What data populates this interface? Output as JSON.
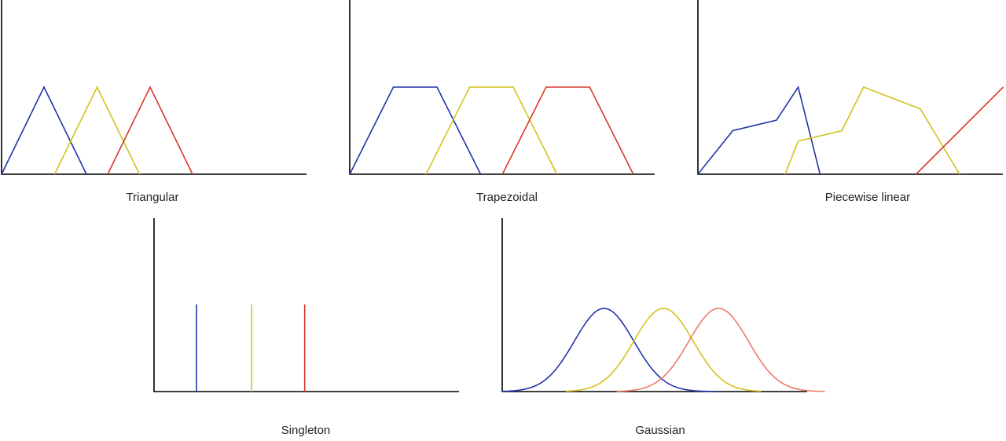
{
  "colors": {
    "blue": "#2233aa",
    "yellow": "#d4c21e",
    "red": "#d63a2a",
    "salmon": "#ec7a6b",
    "axis": "#000000"
  },
  "panels": [
    {
      "id": "triangular",
      "caption": "Triangular",
      "series": [
        {
          "color": "blue",
          "points": [
            [
              0,
              0
            ],
            [
              1,
              1
            ],
            [
              2,
              0
            ]
          ]
        },
        {
          "color": "yellow",
          "points": [
            [
              1.25,
              0
            ],
            [
              2.25,
              1
            ],
            [
              3.25,
              0
            ]
          ]
        },
        {
          "color": "red",
          "points": [
            [
              2.5,
              0
            ],
            [
              3.5,
              1
            ],
            [
              4.5,
              0
            ]
          ]
        }
      ]
    },
    {
      "id": "trapezoidal",
      "caption": "Trapezoidal",
      "series": [
        {
          "color": "blue",
          "points": [
            [
              0,
              0
            ],
            [
              1,
              1
            ],
            [
              2,
              1
            ],
            [
              3,
              0
            ]
          ]
        },
        {
          "color": "yellow",
          "points": [
            [
              1.75,
              0
            ],
            [
              2.75,
              1
            ],
            [
              3.75,
              1
            ],
            [
              4.75,
              0
            ]
          ]
        },
        {
          "color": "red",
          "points": [
            [
              3.5,
              0
            ],
            [
              4.5,
              1
            ],
            [
              5.5,
              1
            ],
            [
              6.5,
              0
            ]
          ]
        }
      ]
    },
    {
      "id": "piecewise-linear",
      "caption": "Piecewise linear",
      "series": [
        {
          "color": "blue",
          "points": [
            [
              0,
              0
            ],
            [
              0.8,
              0.5
            ],
            [
              1.8,
              0.62
            ],
            [
              2.3,
              1
            ],
            [
              2.8,
              0
            ]
          ]
        },
        {
          "color": "yellow",
          "points": [
            [
              2.0,
              0
            ],
            [
              2.3,
              0.38
            ],
            [
              3.3,
              0.5
            ],
            [
              3.8,
              1
            ],
            [
              5.1,
              0.75
            ],
            [
              6.0,
              0
            ]
          ]
        },
        {
          "color": "red",
          "points": [
            [
              5.0,
              0
            ],
            [
              7.0,
              1
            ]
          ]
        }
      ]
    },
    {
      "id": "singleton",
      "caption": "Singleton",
      "series": [
        {
          "color": "blue",
          "points": [
            [
              1,
              0
            ],
            [
              1,
              1
            ]
          ]
        },
        {
          "color": "yellow",
          "points": [
            [
              2.3,
              0
            ],
            [
              2.3,
              1
            ]
          ]
        },
        {
          "color": "red",
          "points": [
            [
              3.55,
              0
            ],
            [
              3.55,
              1
            ]
          ]
        }
      ]
    },
    {
      "id": "gaussian",
      "caption": "Gaussian",
      "series": [
        {
          "color": "blue",
          "gaussian": {
            "mu": 2.4,
            "sigma": 0.7,
            "from": 0,
            "to": 5
          }
        },
        {
          "color": "yellow",
          "gaussian": {
            "mu": 3.8,
            "sigma": 0.7,
            "from": 1.5,
            "to": 6.1
          }
        },
        {
          "color": "salmon",
          "gaussian": {
            "mu": 5.1,
            "sigma": 0.7,
            "from": 2.7,
            "to": 7.6
          }
        }
      ]
    }
  ]
}
